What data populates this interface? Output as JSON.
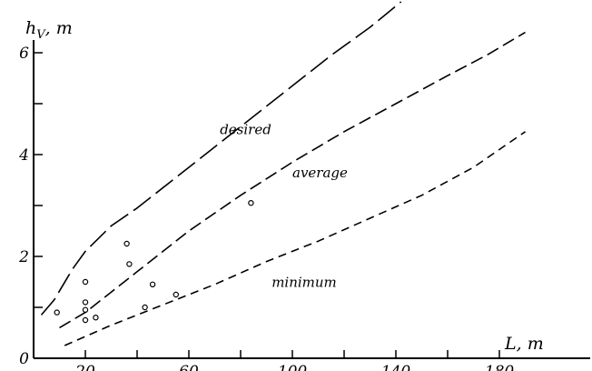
{
  "chart_data": {
    "type": "line",
    "x_axis": {
      "label": "L, m",
      "range": [
        0,
        190
      ],
      "tick_labels": [
        {
          "value": 20,
          "text": "20"
        },
        {
          "value": 60,
          "text": "60"
        },
        {
          "value": 100,
          "text": "100"
        },
        {
          "value": 140,
          "text": "140"
        },
        {
          "value": 180,
          "text": "180"
        }
      ],
      "minor_ticks": [
        40,
        80,
        120,
        160
      ]
    },
    "y_axis": {
      "label": "h_V, m",
      "label_main": "h",
      "label_sub": "V",
      "label_unit": ", m",
      "range": [
        0,
        6.5
      ],
      "tick_labels": [
        {
          "value": 0,
          "text": "0"
        },
        {
          "value": 2,
          "text": "2"
        },
        {
          "value": 4,
          "text": "4"
        },
        {
          "value": 6,
          "text": "6"
        }
      ],
      "minor_ticks": [
        1,
        3,
        5
      ]
    },
    "grid": false,
    "series": [
      {
        "name": "desired",
        "dash": "long",
        "x": [
          3,
          8,
          15,
          20,
          30,
          40,
          55,
          70,
          85,
          100,
          115,
          130,
          142
        ],
        "y": [
          0.85,
          1.15,
          1.75,
          2.1,
          2.6,
          2.95,
          3.55,
          4.15,
          4.75,
          5.35,
          5.95,
          6.5,
          7.0
        ]
      },
      {
        "name": "average",
        "dash": "medium",
        "x": [
          10,
          20,
          30,
          40,
          50,
          60,
          70,
          80,
          100,
          120,
          140,
          160,
          175,
          190
        ],
        "y": [
          0.6,
          0.9,
          1.3,
          1.7,
          2.1,
          2.5,
          2.85,
          3.2,
          3.85,
          4.45,
          5.0,
          5.55,
          5.95,
          6.4
        ]
      },
      {
        "name": "minimum",
        "dash": "short",
        "x": [
          12,
          30,
          50,
          70,
          90,
          110,
          130,
          150,
          170,
          190
        ],
        "y": [
          0.25,
          0.65,
          1.05,
          1.45,
          1.9,
          2.3,
          2.75,
          3.2,
          3.75,
          4.45
        ]
      }
    ],
    "curve_labels": [
      {
        "text": "desired",
        "x": 72,
        "y": 4.4
      },
      {
        "text": "average",
        "x": 100,
        "y": 3.55
      },
      {
        "text": "minimum",
        "x": 92,
        "y": 1.4
      }
    ],
    "scatter_points": [
      {
        "x": 9,
        "y": 0.9
      },
      {
        "x": 20,
        "y": 1.5
      },
      {
        "x": 20,
        "y": 1.1
      },
      {
        "x": 20,
        "y": 0.95
      },
      {
        "x": 20,
        "y": 0.75
      },
      {
        "x": 24,
        "y": 0.8
      },
      {
        "x": 36,
        "y": 2.25
      },
      {
        "x": 37,
        "y": 1.85
      },
      {
        "x": 43,
        "y": 1.0
      },
      {
        "x": 46,
        "y": 1.45
      },
      {
        "x": 55,
        "y": 1.25
      },
      {
        "x": 84,
        "y": 3.05
      }
    ]
  }
}
